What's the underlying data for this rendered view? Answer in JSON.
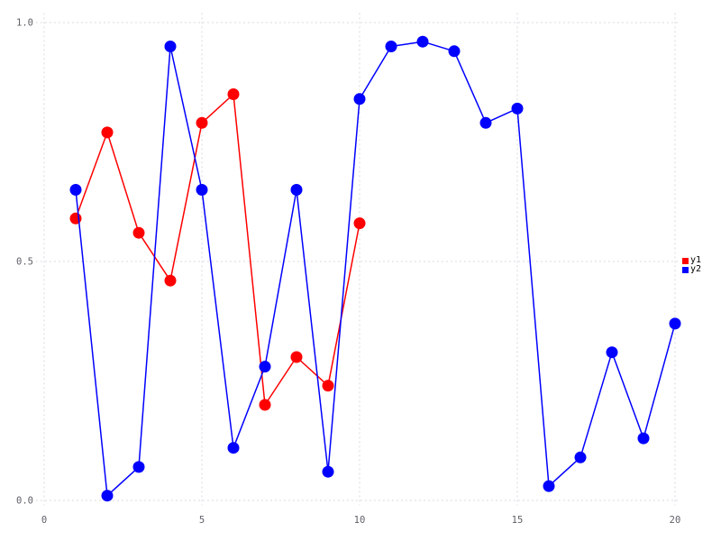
{
  "chart_data": {
    "type": "line",
    "title": "",
    "xlabel": "",
    "ylabel": "",
    "xlim": [
      -0.26,
      20.14
    ],
    "ylim": [
      -0.01,
      1.02
    ],
    "grid": true,
    "grid_style": "dotted",
    "grid_color": "#d9d9e0",
    "legend_position": "right",
    "marker": "circle",
    "marker_radius": 6.5,
    "xticks": {
      "values": [
        0,
        5,
        10,
        15,
        20
      ],
      "labels": [
        "0",
        "5",
        "10",
        "15",
        "20"
      ]
    },
    "yticks": {
      "values": [
        0,
        0.5,
        1
      ],
      "labels": [
        "0.0",
        "0.5",
        "1.0"
      ]
    },
    "series": [
      {
        "name": "y1",
        "color": "#ff0000",
        "x": [
          1,
          2,
          3,
          4,
          5,
          6,
          7,
          8,
          9,
          10
        ],
        "y": [
          0.59,
          0.77,
          0.56,
          0.46,
          0.79,
          0.85,
          0.2,
          0.3,
          0.24,
          0.58
        ]
      },
      {
        "name": "y2",
        "color": "#0000ff",
        "x": [
          1,
          2,
          3,
          4,
          5,
          6,
          7,
          8,
          9,
          10,
          11,
          12,
          13,
          14,
          15,
          16,
          17,
          18,
          19,
          20
        ],
        "y": [
          0.65,
          0.01,
          0.07,
          0.95,
          0.65,
          0.11,
          0.28,
          0.65,
          0.06,
          0.84,
          0.95,
          0.96,
          0.94,
          0.79,
          0.82,
          0.03,
          0.09,
          0.31,
          0.13,
          0.37
        ]
      }
    ]
  }
}
